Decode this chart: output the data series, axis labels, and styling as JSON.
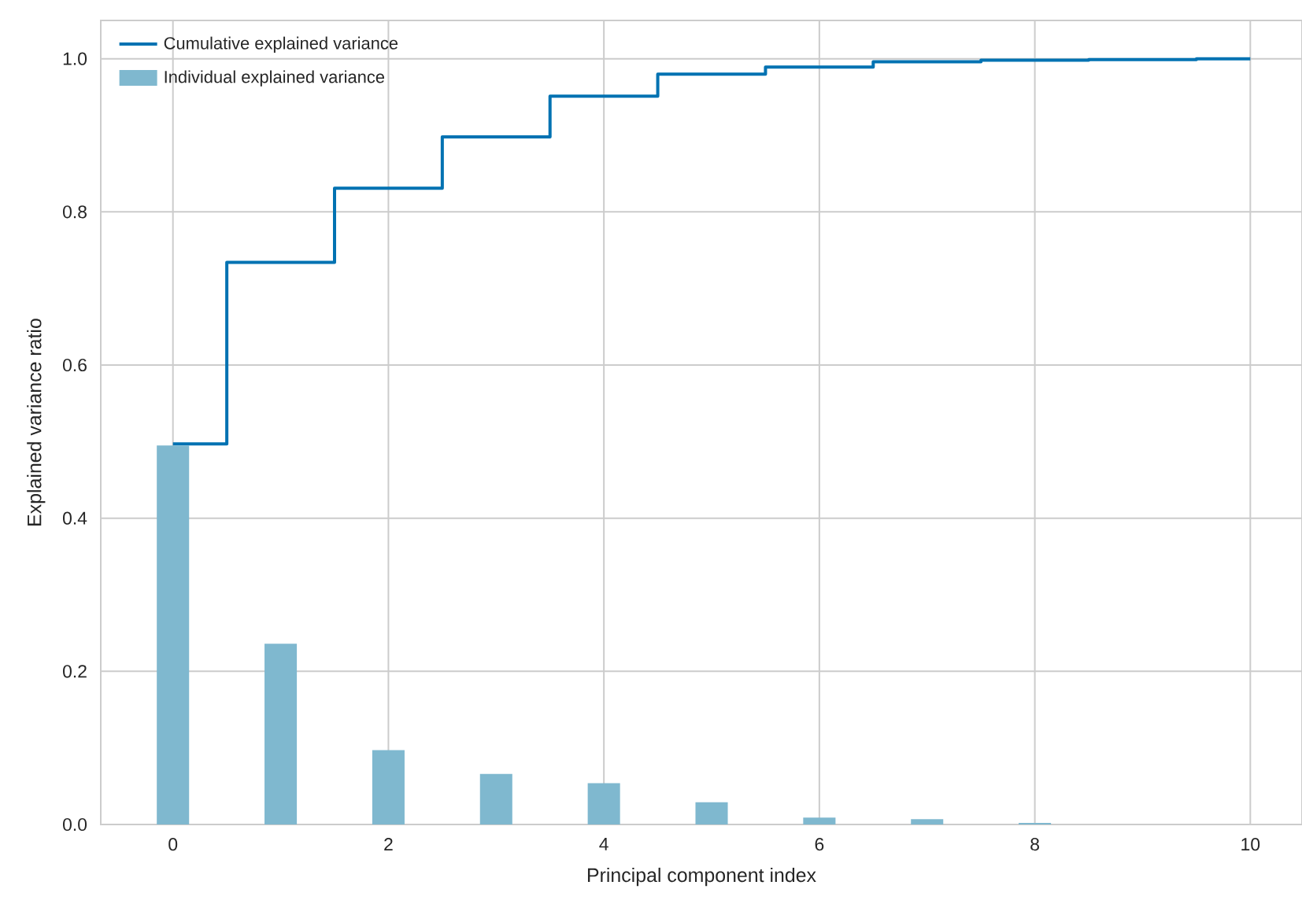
{
  "chart_data": {
    "type": "bar",
    "xlabel": "Principal component index",
    "ylabel": "Explained variance ratio",
    "x": [
      0,
      1,
      2,
      3,
      4,
      5,
      6,
      7,
      8,
      9,
      10
    ],
    "series": [
      {
        "name": "Cumulative explained variance",
        "type": "step",
        "color": "#0072b2",
        "values": [
          0.497,
          0.734,
          0.831,
          0.898,
          0.951,
          0.98,
          0.989,
          0.996,
          0.998,
          0.999,
          1.0
        ]
      },
      {
        "name": "Individual explained variance",
        "color": "#7fb8cf",
        "values": [
          0.495,
          0.236,
          0.097,
          0.066,
          0.054,
          0.029,
          0.009,
          0.007,
          0.002,
          null,
          null
        ]
      }
    ],
    "xlim": [
      -0.67,
      10.48
    ],
    "ylim": [
      0,
      1.05
    ],
    "xticks": [
      0,
      2,
      4,
      6,
      8,
      10
    ],
    "yticks": [
      {
        "value": 0,
        "label": "0.0"
      },
      {
        "value": 0.2,
        "label": "0.2"
      },
      {
        "value": 0.4,
        "label": "0.4"
      },
      {
        "value": 0.6,
        "label": "0.6"
      },
      {
        "value": 0.8,
        "label": "0.8"
      },
      {
        "value": 1.0,
        "label": "1.0"
      }
    ],
    "grid": true,
    "legend": "top left"
  }
}
